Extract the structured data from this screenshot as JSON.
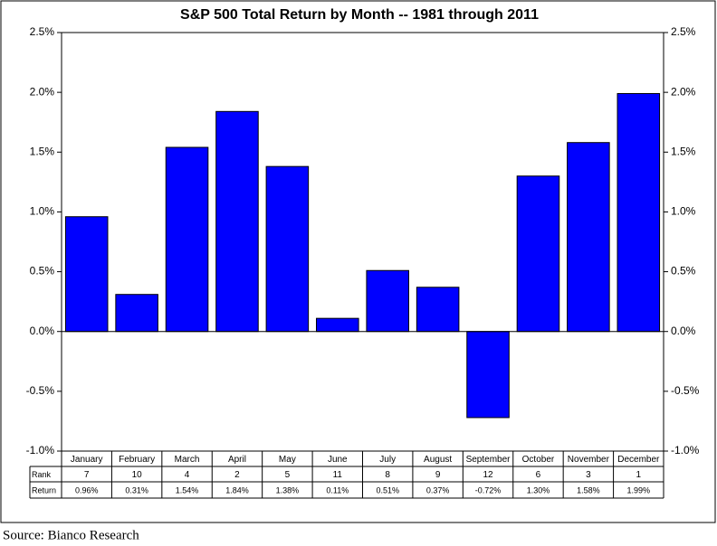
{
  "chart_data": {
    "type": "bar",
    "title": "S&P 500 Total Return by Month -- 1981 through 2011",
    "categories": [
      "January",
      "February",
      "March",
      "April",
      "May",
      "June",
      "July",
      "August",
      "September",
      "October",
      "November",
      "December"
    ],
    "values": [
      0.96,
      0.31,
      1.54,
      1.84,
      1.38,
      0.11,
      0.51,
      0.37,
      -0.72,
      1.3,
      1.58,
      1.99
    ],
    "value_labels": [
      "0.96%",
      "0.31%",
      "1.54%",
      "1.84%",
      "1.38%",
      "0.11%",
      "0.51%",
      "0.37%",
      "-0.72%",
      "1.30%",
      "1.58%",
      "1.99%"
    ],
    "color": "#0000ff",
    "table_row_labels": [
      "Rank",
      "Return"
    ],
    "ranks": [
      7,
      10,
      4,
      2,
      5,
      11,
      8,
      9,
      12,
      6,
      3,
      1
    ],
    "ylim": [
      -1.0,
      2.5
    ],
    "yticks": [
      {
        "value": -1.0,
        "label": "-1.0%"
      },
      {
        "value": -0.5,
        "label": "-0.5%"
      },
      {
        "value": 0.0,
        "label": "0.0%"
      },
      {
        "value": 0.5,
        "label": "0.5%"
      },
      {
        "value": 1.0,
        "label": "1.0%"
      },
      {
        "value": 1.5,
        "label": "1.5%"
      },
      {
        "value": 2.0,
        "label": "2.0%"
      },
      {
        "value": 2.5,
        "label": "2.5%"
      }
    ],
    "y2lim": [
      -1.0,
      2.5
    ],
    "y2ticks": [
      {
        "value": -1.0,
        "label": "-1.0%"
      },
      {
        "value": -0.5,
        "label": "-0.5%"
      },
      {
        "value": 0.0,
        "label": "0.0%"
      },
      {
        "value": 0.5,
        "label": "0.5%"
      },
      {
        "value": 1.0,
        "label": "1.0%"
      },
      {
        "value": 1.5,
        "label": "1.5%"
      },
      {
        "value": 2.0,
        "label": "2.0%"
      },
      {
        "value": 2.5,
        "label": "2.5%"
      }
    ],
    "grid": false,
    "source": "Source: Bianco Research"
  }
}
